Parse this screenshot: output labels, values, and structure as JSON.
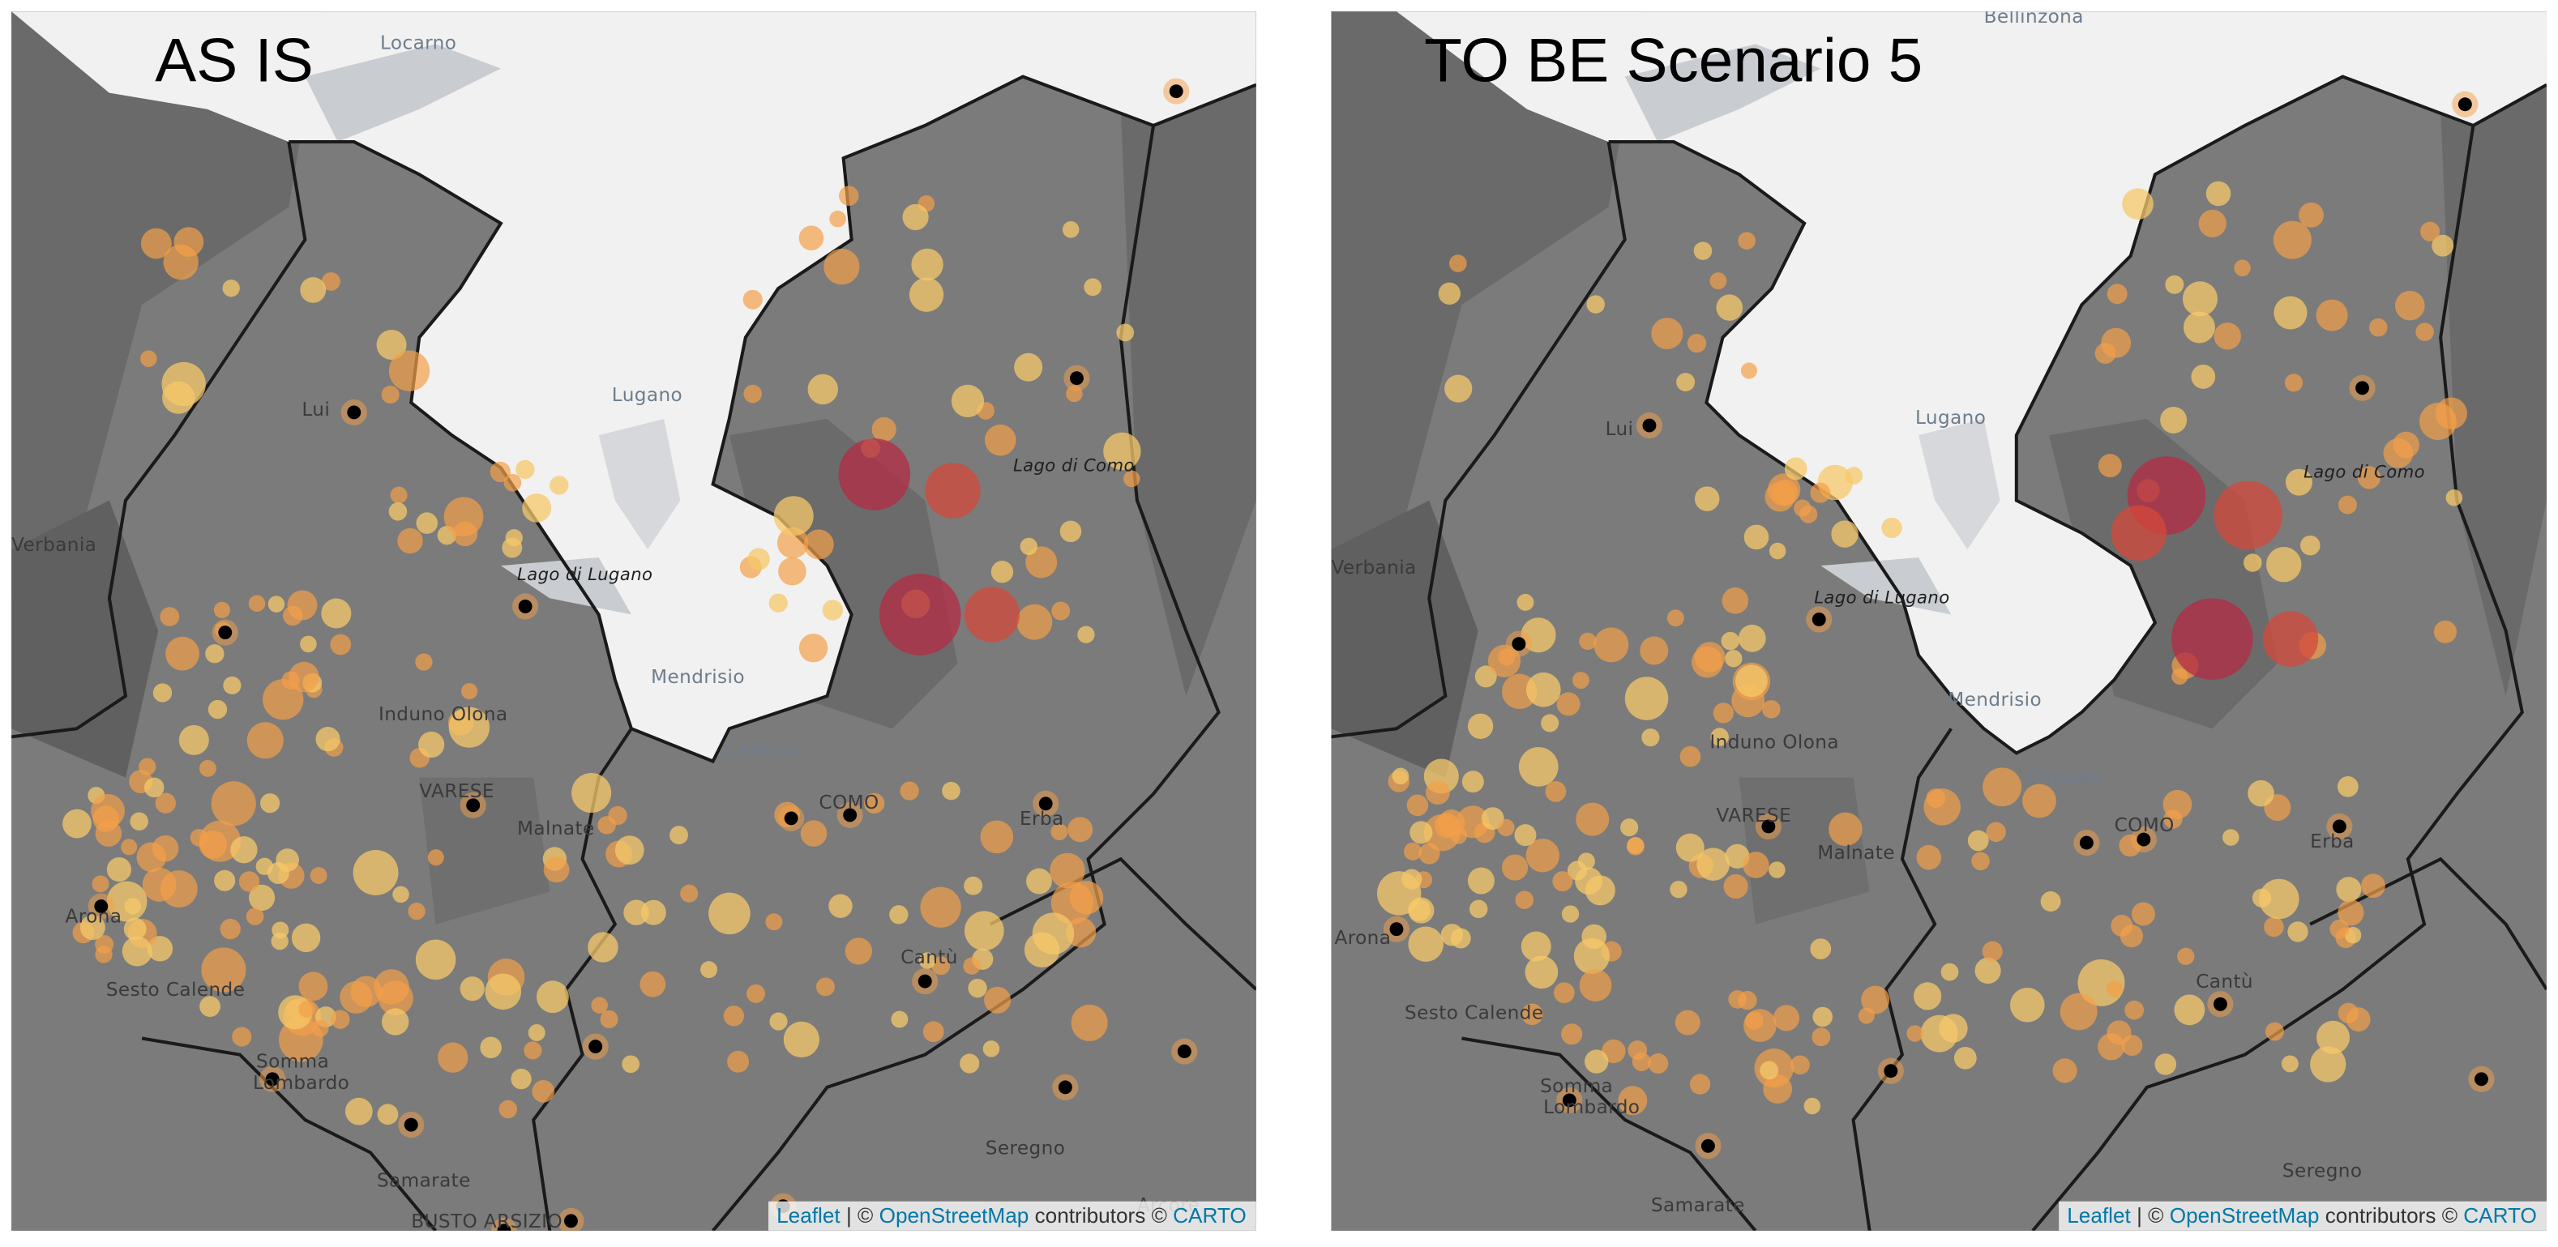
{
  "panels": [
    {
      "title": "AS IS",
      "places": {
        "locarno": "Locarno",
        "luino": "Lui",
        "verbania": "Verbania",
        "lugano": "Lugano",
        "lago_lugano": "Lago di Lugano",
        "lago_como": "Lago di Como",
        "mendrisio": "Mendrisio",
        "induno": "Induno Olona",
        "varese": "VARESE",
        "malnate": "Malnate",
        "chiasso": "Chiasso",
        "como": "COMO",
        "erba": "Erba",
        "arona": "Arona",
        "sesto": "Sesto Calende",
        "somma1": "Somma",
        "somma2": "Lombardo",
        "cantu": "Cantù",
        "seregno": "Seregno",
        "samarate": "Samarate",
        "busto": "BUSTO ARSIZIO",
        "arcore": "Arcore"
      },
      "attribution": {
        "leaflet": "Leaflet",
        "sep": " | © ",
        "osm": "OpenStreetMap",
        "mid": " contributors © ",
        "carto": "CARTO"
      },
      "big_circles": [
        {
          "label": "hub-1",
          "color": "#b42b43"
        },
        {
          "label": "hub-2",
          "color": "#b42b43"
        },
        {
          "label": "hub-3",
          "color": "#d4483b"
        },
        {
          "label": "hub-4",
          "color": "#d4483b"
        }
      ]
    },
    {
      "title": "TO BE Scenario 5",
      "places": {
        "bellinzona": "Bellinzona",
        "luino": "Lui",
        "verbania": "Verbania",
        "lugano": "Lugano",
        "lago_lugano": "Lago di Lugano",
        "lago_como": "Lago di Como",
        "mendrisio": "Mendrisio",
        "induno": "Induno Olona",
        "varese": "VARESE",
        "malnate": "Malnate",
        "chiasso": "Chiasso",
        "como": "COMO",
        "erba": "Erba",
        "arona": "Arona",
        "sesto": "Sesto Calende",
        "somma1": "Somma",
        "somma2": "Lombardo",
        "cantu": "Cantù",
        "seregno": "Seregno",
        "samarate": "Samarate"
      },
      "attribution": {
        "leaflet": "Leaflet",
        "sep": " | © ",
        "osm": "OpenStreetMap",
        "mid": " contributors © ",
        "carto": "CARTO"
      },
      "big_circles": [
        {
          "label": "hub-1",
          "color": "#b42b43"
        },
        {
          "label": "hub-2",
          "color": "#b42b43"
        },
        {
          "label": "hub-3",
          "color": "#d4483b"
        },
        {
          "label": "hub-4",
          "color": "#d4483b"
        },
        {
          "label": "hub-5",
          "color": "#d4483b"
        }
      ]
    }
  ],
  "colors": {
    "background": "#7b7b7b",
    "darker": "#5f5f5f",
    "swiss": "#f2f2f2",
    "lake": "#c5c8cb",
    "border": "#1a1a1a",
    "marker": "#f3a94a",
    "marker_big": "#b42b43",
    "depot": "#000000"
  }
}
